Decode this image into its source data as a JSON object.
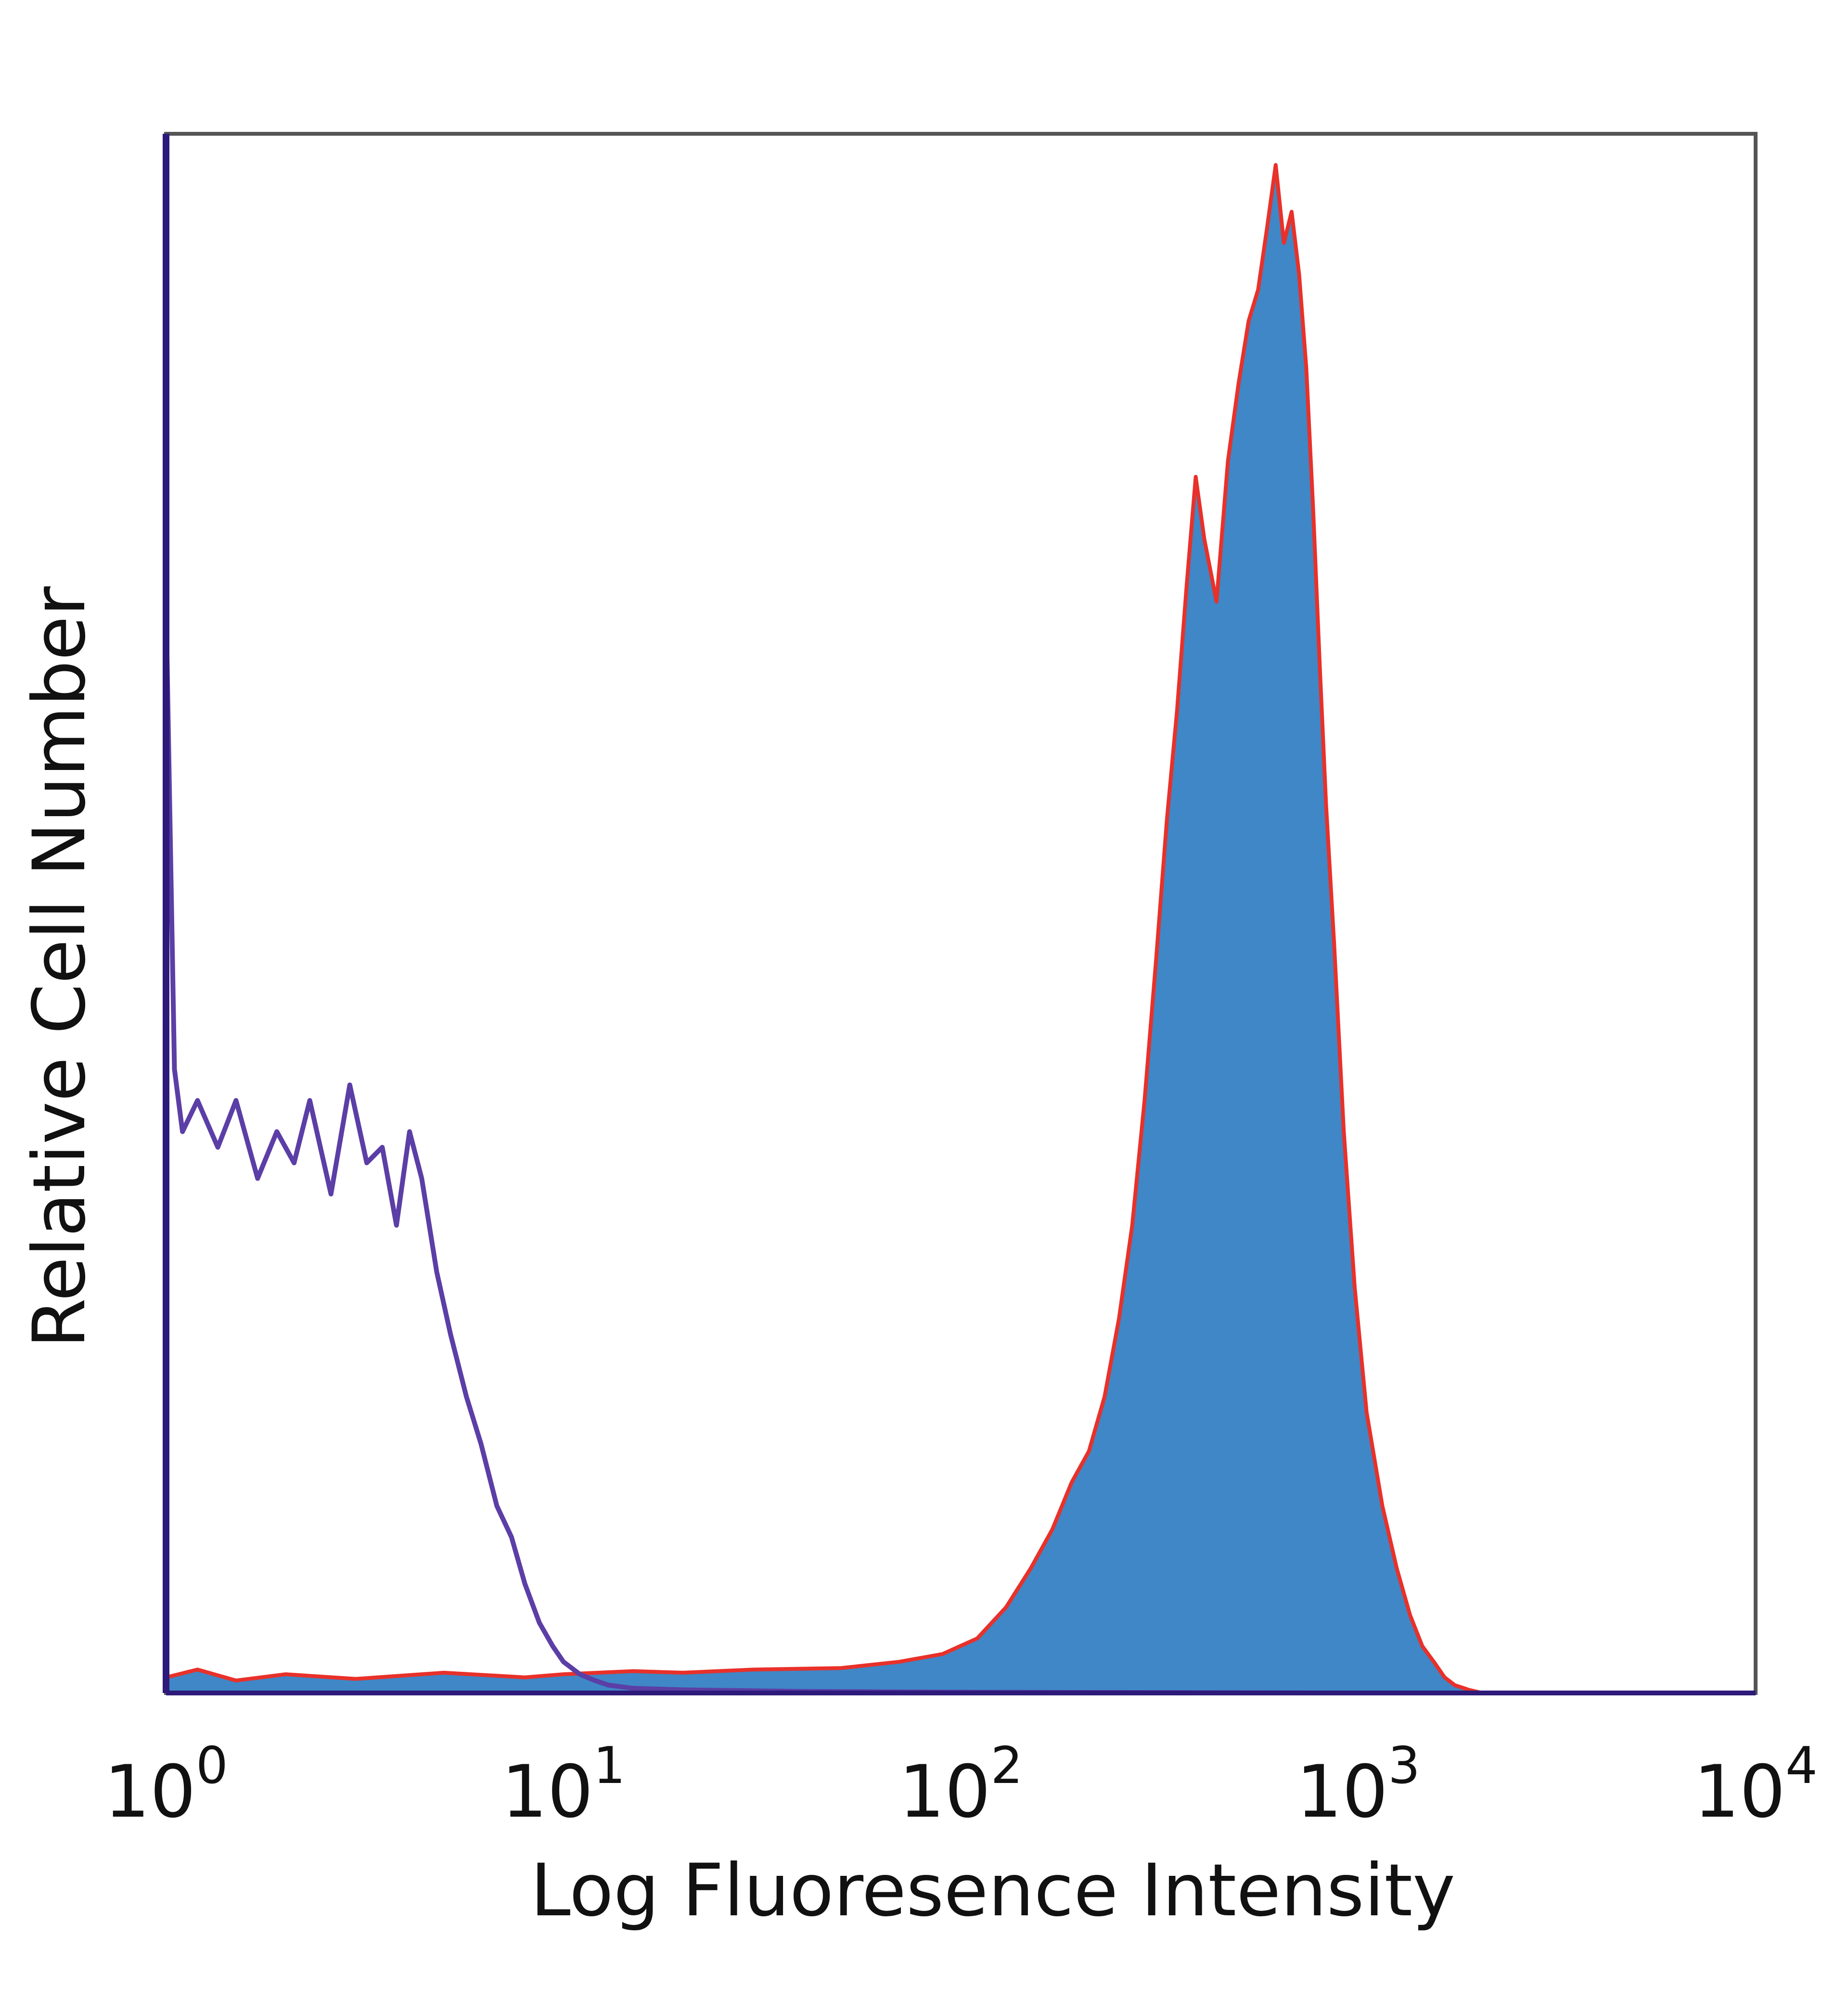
{
  "chart_data": {
    "type": "area",
    "xlabel": "Log Fluoresence Intensity",
    "ylabel": "Relative Cell Number",
    "x_scale": "log",
    "xlim": [
      1,
      10000
    ],
    "ylim": [
      0,
      100
    ],
    "x_ticks": [
      {
        "base": "10",
        "exp": "0",
        "value": 1
      },
      {
        "base": "10",
        "exp": "1",
        "value": 10
      },
      {
        "base": "10",
        "exp": "2",
        "value": 100
      },
      {
        "base": "10",
        "exp": "3",
        "value": 1000
      },
      {
        "base": "10",
        "exp": "4",
        "value": 10000
      }
    ],
    "grid": false,
    "legend": "none",
    "colors": {
      "filled_series_fill": "#3f87c6",
      "filled_series_outline": "#e8312a",
      "control_line": "#5b3ea6",
      "axis_frame": "#555555",
      "y_axis_line": "#2e1a7a"
    },
    "series": [
      {
        "style": "filled",
        "x": [
          1.0,
          1.2,
          1.5,
          2.0,
          3.0,
          5.0,
          8.0,
          10,
          15,
          20,
          30,
          50,
          70,
          90,
          110,
          130,
          150,
          170,
          190,
          210,
          230,
          250,
          270,
          290,
          310,
          330,
          350,
          370,
          390,
          410,
          440,
          470,
          500,
          530,
          560,
          590,
          620,
          650,
          680,
          710,
          740,
          770,
          800,
          830,
          870,
          920,
          980,
          1050,
          1150,
          1250,
          1350,
          1450,
          1550,
          1650,
          1750,
          1900,
          2050,
          2200,
          2400
        ],
        "y": [
          1.0,
          1.5,
          0.8,
          1.2,
          0.9,
          1.3,
          1.0,
          1.2,
          1.4,
          1.3,
          1.5,
          1.6,
          2.0,
          2.5,
          3.5,
          5.5,
          8.0,
          10.5,
          13.5,
          15.5,
          19.0,
          24.0,
          30.0,
          38.0,
          47.0,
          56.0,
          63.0,
          71.0,
          78.0,
          74.0,
          70.0,
          79.0,
          84.0,
          88.0,
          90.0,
          94.0,
          98.0,
          93.0,
          95.0,
          91.0,
          85.0,
          76.0,
          66.0,
          57.0,
          48.0,
          36.0,
          26.0,
          18.0,
          12.0,
          8.0,
          5.0,
          3.0,
          2.0,
          1.0,
          0.5,
          0.2,
          0.0,
          0.0,
          0.0
        ]
      },
      {
        "style": "line",
        "x": [
          1.0,
          1.05,
          1.1,
          1.2,
          1.35,
          1.5,
          1.7,
          1.9,
          2.1,
          2.3,
          2.6,
          2.9,
          3.2,
          3.5,
          3.8,
          4.1,
          4.4,
          4.8,
          5.2,
          5.7,
          6.2,
          6.8,
          7.4,
          8.0,
          8.7,
          9.4,
          10.0,
          11,
          12,
          13,
          15,
          20,
          40,
          100,
          1000,
          10000
        ],
        "y": [
          70.0,
          40.0,
          36.0,
          38.0,
          35.0,
          38.0,
          33.0,
          36.0,
          34.0,
          38.0,
          32.0,
          39.0,
          34.0,
          35.0,
          30.0,
          36.0,
          33.0,
          27.0,
          23.0,
          19.0,
          16.0,
          12.0,
          10.0,
          7.0,
          4.5,
          3.0,
          2.0,
          1.2,
          0.8,
          0.5,
          0.3,
          0.2,
          0.1,
          0.05,
          0.0,
          0.0
        ]
      }
    ]
  }
}
